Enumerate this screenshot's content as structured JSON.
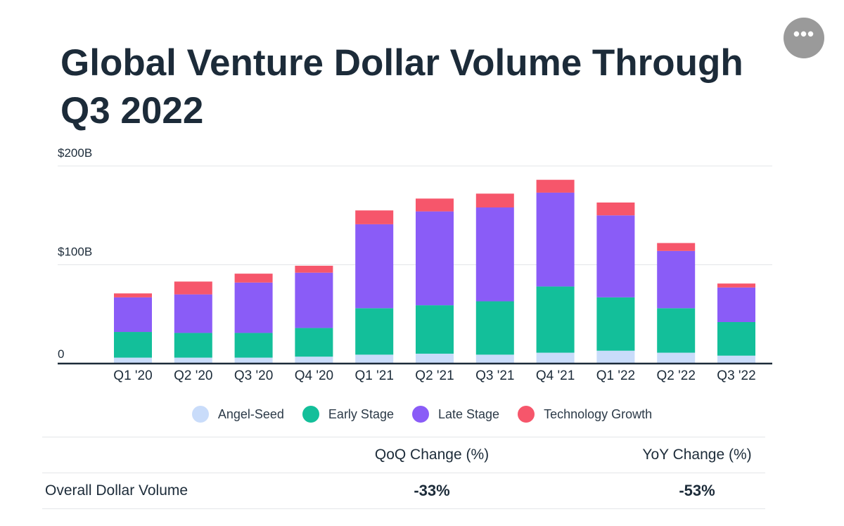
{
  "title": "Global Venture Dollar Volume Through Q3 2022",
  "menu_icon": "more-horizontal-icon",
  "chart_data": {
    "type": "bar",
    "stacked": true,
    "categories": [
      "Q1 '20",
      "Q2 '20",
      "Q3 '20",
      "Q4 '20",
      "Q1 '21",
      "Q2 '21",
      "Q3 '21",
      "Q4 '21",
      "Q1 '22",
      "Q2 '22",
      "Q3 '22"
    ],
    "series": [
      {
        "name": "Angel-Seed",
        "color": "#c9dcfa",
        "values": [
          6,
          6,
          6,
          7,
          9,
          10,
          9,
          11,
          13,
          11,
          8
        ]
      },
      {
        "name": "Early Stage",
        "color": "#13bf9a",
        "values": [
          26,
          25,
          25,
          29,
          47,
          49,
          54,
          67,
          54,
          45,
          34
        ]
      },
      {
        "name": "Late Stage",
        "color": "#8a5cf7",
        "values": [
          35,
          39,
          51,
          56,
          85,
          95,
          95,
          95,
          83,
          58,
          35
        ]
      },
      {
        "name": "Technology Growth",
        "color": "#f6566b",
        "values": [
          4,
          13,
          9,
          7,
          14,
          13,
          14,
          13,
          13,
          8,
          4
        ]
      }
    ],
    "yticks": [
      {
        "value": 0,
        "label": "0"
      },
      {
        "value": 100,
        "label": "$100B"
      },
      {
        "value": 200,
        "label": "$200B"
      }
    ],
    "ylim": [
      0,
      200
    ],
    "grid": true,
    "legend_position": "bottom-center"
  },
  "table": {
    "headers": [
      "",
      "QoQ Change (%)",
      "YoY Change (%)"
    ],
    "rows": [
      {
        "label": "Overall Dollar Volume",
        "qoq": "-33%",
        "yoy": "-53%"
      }
    ]
  }
}
